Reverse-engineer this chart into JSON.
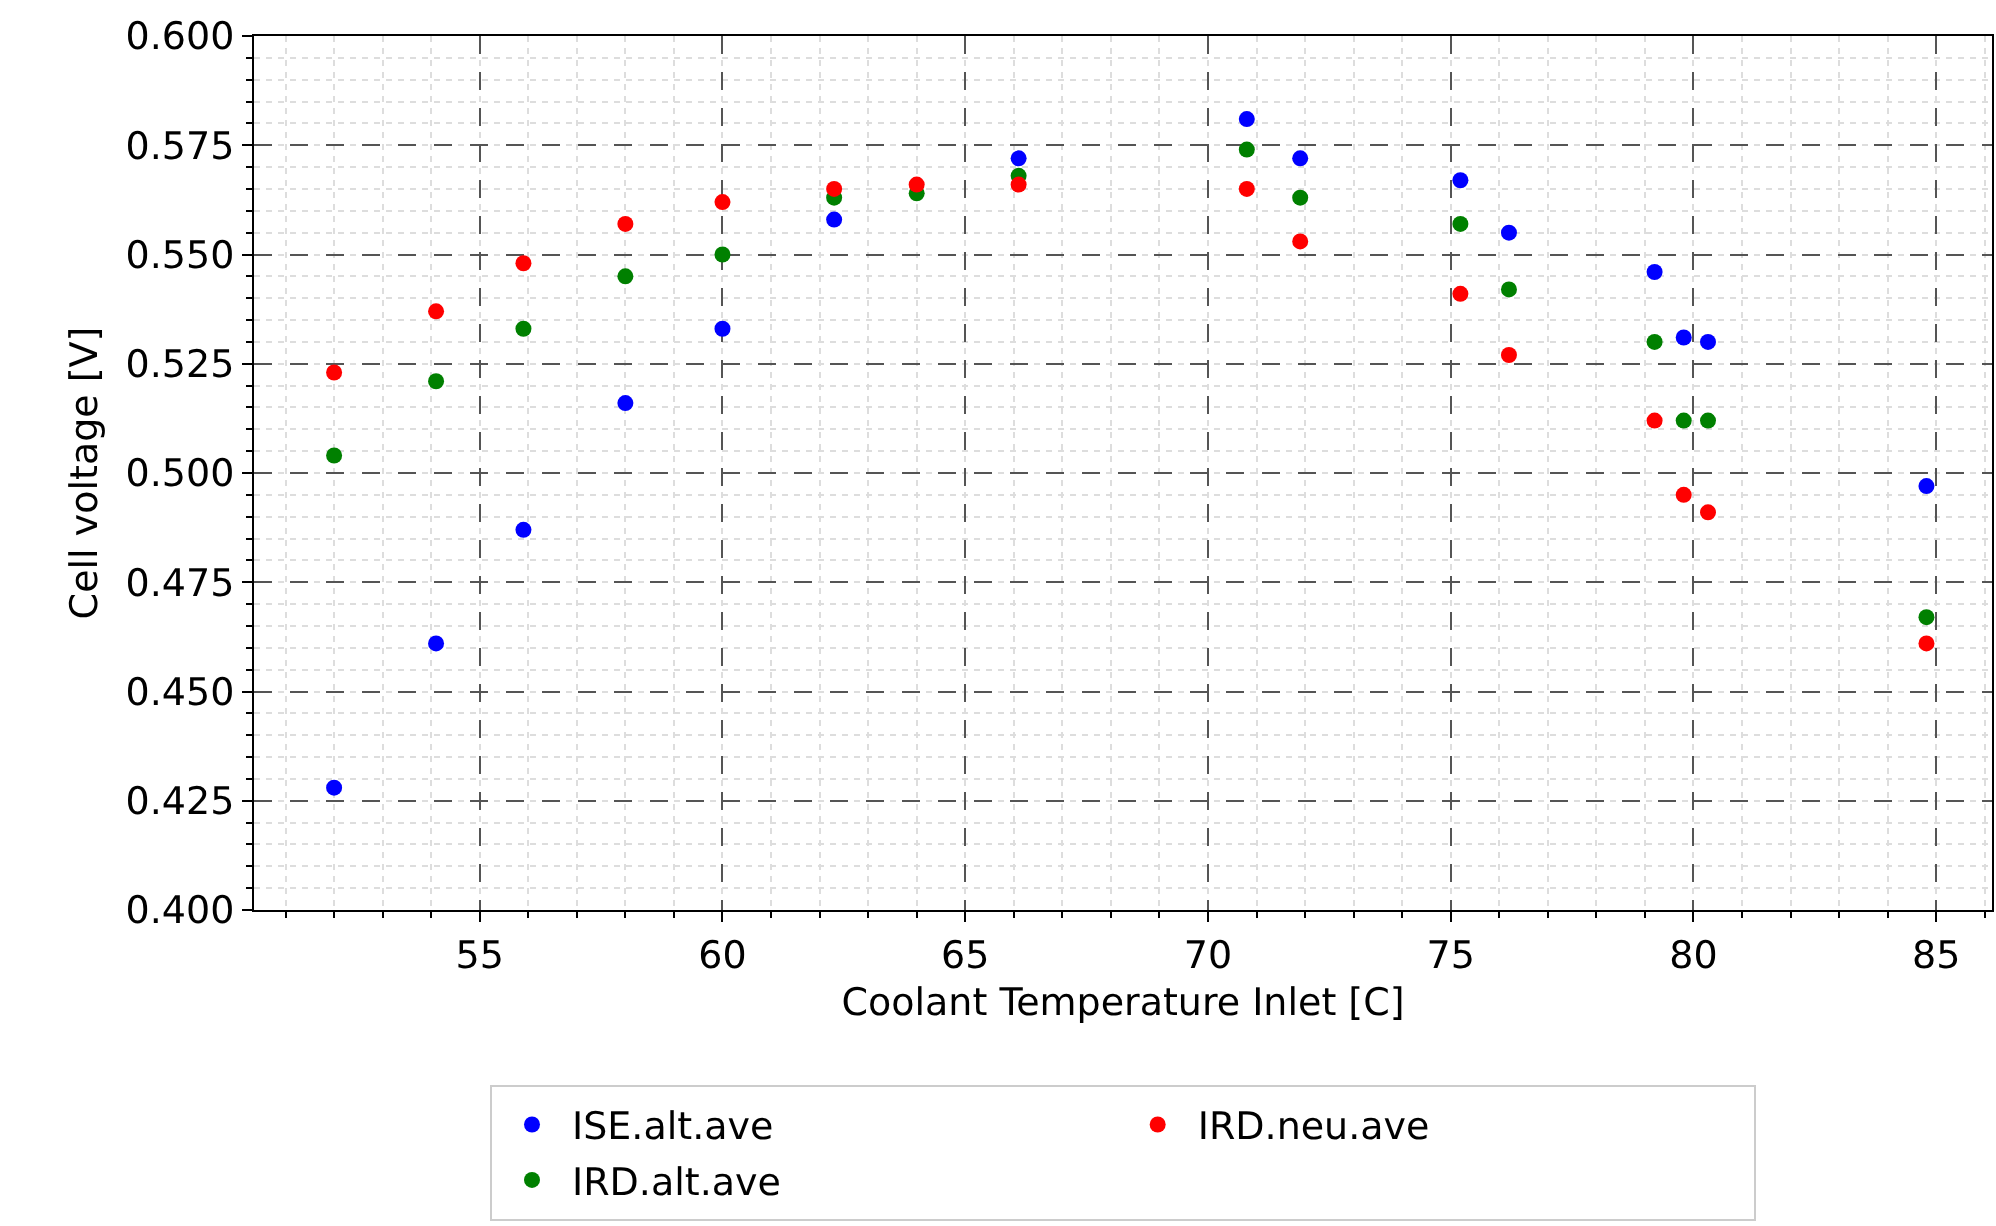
{
  "chart_data": {
    "type": "scatter",
    "xlabel": "Coolant Temperature Inlet [C]",
    "ylabel": "Cell voltage [V]",
    "xlim": [
      50.35,
      86.15
    ],
    "xticks": [
      55,
      60,
      65,
      70,
      75,
      80,
      85
    ],
    "ylim": [
      0.4,
      0.6
    ],
    "yticks": [
      {
        "value": 0.4,
        "label": "0.400"
      },
      {
        "value": 0.425,
        "label": "0.425"
      },
      {
        "value": 0.45,
        "label": "0.450"
      },
      {
        "value": 0.475,
        "label": "0.475"
      },
      {
        "value": 0.5,
        "label": "0.500"
      },
      {
        "value": 0.525,
        "label": "0.525"
      },
      {
        "value": 0.55,
        "label": "0.550"
      },
      {
        "value": 0.575,
        "label": "0.575"
      },
      {
        "value": 0.6,
        "label": "0.600"
      }
    ],
    "grid": true,
    "legend": "bottom",
    "marker": "circle",
    "series": [
      {
        "name": "ISE.alt.ave",
        "color": "#0000ff",
        "x": [
          52.0,
          54.1,
          55.9,
          58.0,
          60.0,
          62.3,
          66.1,
          70.8,
          71.9,
          75.2,
          76.2,
          79.2,
          79.8,
          80.3,
          84.8
        ],
        "values": [
          0.428,
          0.461,
          0.487,
          0.516,
          0.533,
          0.558,
          0.572,
          0.581,
          0.572,
          0.567,
          0.555,
          0.546,
          0.531,
          0.53,
          0.497
        ]
      },
      {
        "name": "IRD.alt.ave",
        "color": "#008000",
        "x": [
          52.0,
          54.1,
          55.9,
          58.0,
          60.0,
          62.3,
          64.0,
          66.1,
          70.8,
          71.9,
          75.2,
          76.2,
          79.2,
          79.8,
          80.3,
          84.8
        ],
        "values": [
          0.504,
          0.521,
          0.533,
          0.545,
          0.55,
          0.563,
          0.564,
          0.568,
          0.574,
          0.563,
          0.557,
          0.542,
          0.53,
          0.512,
          0.512,
          0.467
        ]
      },
      {
        "name": "IRD.neu.ave",
        "color": "#ff0000",
        "x": [
          52.0,
          54.1,
          55.9,
          58.0,
          60.0,
          62.3,
          64.0,
          66.1,
          70.8,
          71.9,
          75.2,
          76.2,
          79.2,
          79.8,
          80.3,
          84.8
        ],
        "values": [
          0.523,
          0.537,
          0.548,
          0.557,
          0.562,
          0.565,
          0.566,
          0.566,
          0.565,
          0.553,
          0.541,
          0.527,
          0.512,
          0.495,
          0.491,
          0.461
        ]
      }
    ]
  }
}
